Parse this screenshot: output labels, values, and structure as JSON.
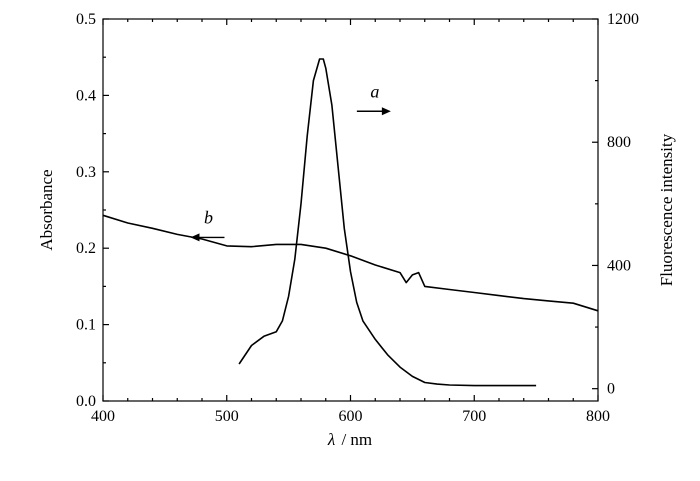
{
  "chart_data": {
    "type": "line",
    "xlabel_symbol": "λ",
    "xlabel_unit": "/ nm",
    "ylabel_left": "Absorbance",
    "ylabel_right": "Fluorescence intensity",
    "xlim": [
      400,
      800
    ],
    "ylim_left": [
      0.0,
      0.5
    ],
    "ylim_right": [
      -40,
      1200
    ],
    "x_ticks": [
      "400",
      "500",
      "600",
      "700",
      "800"
    ],
    "y_left_ticks": [
      "0.0",
      "0.1",
      "0.2",
      "0.3",
      "0.4",
      "0.5"
    ],
    "y_right_ticks": [
      "0",
      "400",
      "800",
      "1200"
    ],
    "series": [
      {
        "name": "a",
        "axis": "right",
        "x": [
          510,
          520,
          530,
          540,
          545,
          550,
          555,
          560,
          565,
          570,
          575,
          578,
          580,
          585,
          590,
          595,
          600,
          605,
          610,
          620,
          630,
          640,
          650,
          660,
          670,
          680,
          700,
          720,
          750
        ],
        "y": [
          80,
          140,
          170,
          185,
          220,
          300,
          420,
          600,
          820,
          1000,
          1070,
          1070,
          1040,
          920,
          720,
          520,
          380,
          280,
          220,
          160,
          110,
          70,
          40,
          20,
          15,
          12,
          10,
          10,
          10
        ]
      },
      {
        "name": "b",
        "axis": "left",
        "x": [
          400,
          420,
          440,
          460,
          480,
          500,
          520,
          540,
          560,
          580,
          600,
          620,
          640,
          645,
          650,
          655,
          660,
          680,
          700,
          720,
          740,
          760,
          780,
          800
        ],
        "y": [
          0.243,
          0.233,
          0.226,
          0.218,
          0.212,
          0.203,
          0.202,
          0.205,
          0.205,
          0.2,
          0.19,
          0.178,
          0.168,
          0.155,
          0.165,
          0.168,
          0.15,
          0.146,
          0.142,
          0.138,
          0.134,
          0.131,
          0.128,
          0.118
        ]
      }
    ],
    "annotations": [
      {
        "label": "a",
        "x": 610,
        "y_right": 920,
        "arrow": "right"
      },
      {
        "label": "b",
        "x": 482,
        "y_left": 0.222,
        "arrow": "left"
      }
    ]
  }
}
